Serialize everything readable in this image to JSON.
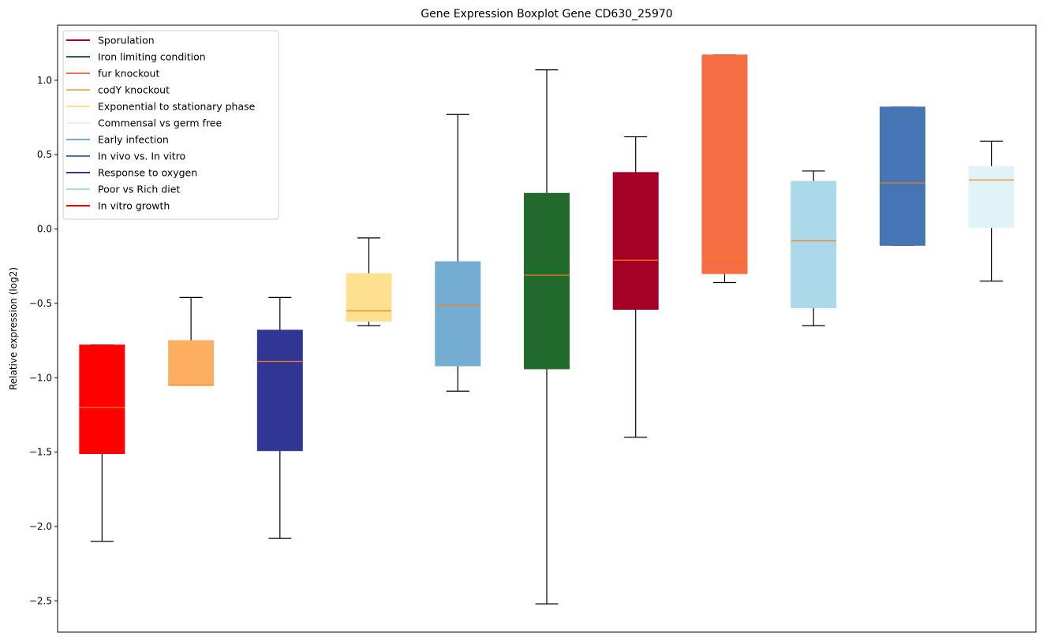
{
  "chart_data": {
    "type": "boxplot",
    "title": "Gene Expression Boxplot Gene CD630_25970",
    "xlabel": "",
    "ylabel": "Relative expression (log2)",
    "ylim": [
      -2.71,
      1.37
    ],
    "yticks": [
      -2.5,
      -2.0,
      -1.5,
      -1.0,
      -0.5,
      0.0,
      0.5,
      1.0
    ],
    "ytick_labels": [
      "−2.5",
      "−2.0",
      "−1.5",
      "−1.0",
      "−0.5",
      "0.0",
      "0.5",
      "1.0"
    ],
    "grid": false,
    "legend_position": "upper-left",
    "median_color": "#ff7f0e",
    "series": [
      {
        "name": "In vitro growth",
        "color": "#ff0000",
        "whislo": -2.1,
        "q1": -1.51,
        "med": -1.2,
        "q3": -0.78,
        "whishi": -0.78
      },
      {
        "name": "codY knockout",
        "color": "#fdae61",
        "whislo": -1.05,
        "q1": -1.05,
        "med": -1.05,
        "q3": -0.75,
        "whishi": -0.46
      },
      {
        "name": "Response to oxygen",
        "color": "#313695",
        "whislo": -2.08,
        "q1": -1.49,
        "med": -0.89,
        "q3": -0.68,
        "whishi": -0.46
      },
      {
        "name": "Exponential to stationary phase",
        "color": "#fee090",
        "whislo": -0.65,
        "q1": -0.62,
        "med": -0.55,
        "q3": -0.3,
        "whishi": -0.06
      },
      {
        "name": "Early infection",
        "color": "#74add1",
        "whislo": -1.09,
        "q1": -0.92,
        "med": -0.51,
        "q3": -0.22,
        "whishi": 0.77
      },
      {
        "name": "Iron limiting condition",
        "color": "#226b2e",
        "whislo": -2.52,
        "q1": -0.94,
        "med": -0.31,
        "q3": 0.24,
        "whishi": 1.07
      },
      {
        "name": "Sporulation",
        "color": "#a50026",
        "whislo": -1.4,
        "q1": -0.54,
        "med": -0.21,
        "q3": 0.38,
        "whishi": 0.62
      },
      {
        "name": "fur knockout",
        "color": "#f46d43",
        "whislo": -0.36,
        "q1": -0.3,
        "med": -0.19,
        "q3": 1.17,
        "whishi": 1.17
      },
      {
        "name": "Poor vs Rich diet",
        "color": "#abd9e9",
        "whislo": -0.65,
        "q1": -0.53,
        "med": -0.08,
        "q3": 0.32,
        "whishi": 0.39
      },
      {
        "name": "In vivo vs. In vitro",
        "color": "#4575b4",
        "whislo": -0.11,
        "q1": -0.11,
        "med": 0.31,
        "q3": 0.82,
        "whishi": 0.82
      },
      {
        "name": "Commensal vs germ free",
        "color": "#e0f3f8",
        "whislo": -0.35,
        "q1": 0.01,
        "med": 0.33,
        "q3": 0.42,
        "whishi": 0.59
      }
    ],
    "legend": [
      {
        "label": "Sporulation",
        "color": "#a50026"
      },
      {
        "label": "Iron limiting condition",
        "color": "#226b2e"
      },
      {
        "label": "fur knockout",
        "color": "#f46d43"
      },
      {
        "label": "codY knockout",
        "color": "#fdae61"
      },
      {
        "label": "Exponential to stationary phase",
        "color": "#fee090"
      },
      {
        "label": "Commensal vs germ free",
        "color": "#e0f3f8"
      },
      {
        "label": "Early infection",
        "color": "#74add1"
      },
      {
        "label": "In vivo vs. In vitro",
        "color": "#4575b4"
      },
      {
        "label": "Response to oxygen",
        "color": "#313695"
      },
      {
        "label": "Poor vs Rich diet",
        "color": "#abd9e9"
      },
      {
        "label": "In vitro growth",
        "color": "#ff0000"
      }
    ]
  }
}
